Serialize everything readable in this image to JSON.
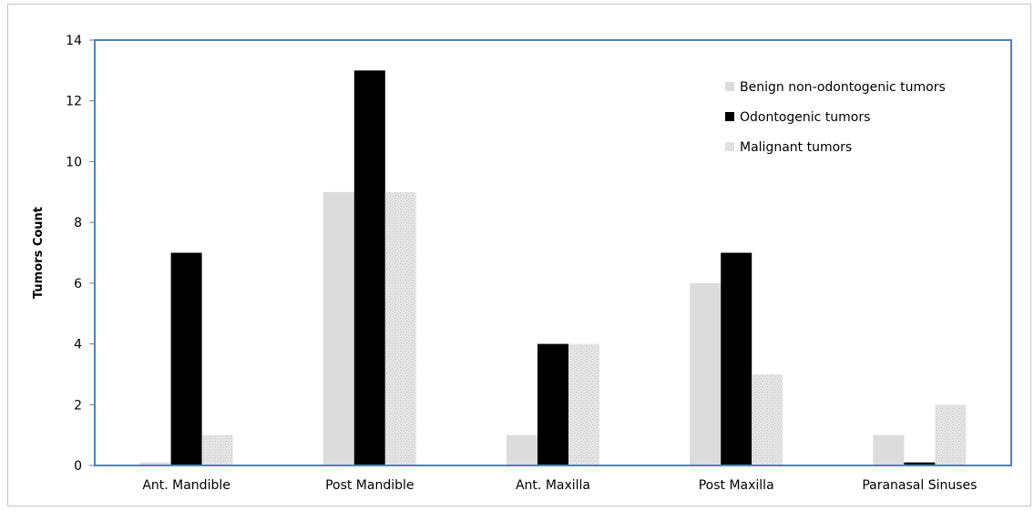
{
  "chart_data": {
    "type": "bar",
    "title": "",
    "xlabel": "",
    "ylabel": "Tumors Count",
    "ylim": [
      0,
      14
    ],
    "yticks": [
      0,
      2,
      4,
      6,
      8,
      10,
      12,
      14
    ],
    "grid": false,
    "legend_position": "top-right",
    "categories": [
      "Ant. Mandible",
      "Post Mandible",
      "Ant. Maxilla",
      "Post Maxilla",
      "Paranasal Sinuses"
    ],
    "series": [
      {
        "name": "Benign non-odontogenic tumors",
        "values": [
          0.1,
          9,
          1,
          6,
          1
        ],
        "color": "#dcdcdc",
        "pattern": "solid-light"
      },
      {
        "name": "Odontogenic tumors",
        "values": [
          7,
          13,
          4,
          7,
          0.1
        ],
        "color": "#000000",
        "pattern": "solid"
      },
      {
        "name": "Malignant tumors",
        "values": [
          1,
          9,
          4,
          3,
          2
        ],
        "color": "#e2e2e2",
        "pattern": "speckled"
      }
    ],
    "plot_border_color": "#4f81bd"
  }
}
